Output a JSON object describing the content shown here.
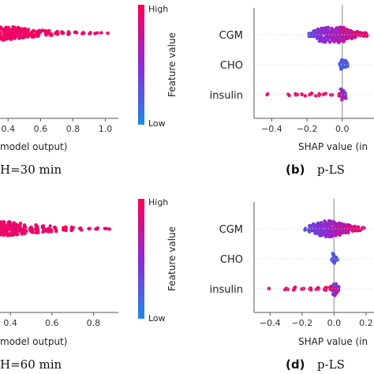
{
  "colors": {
    "low": "#1e88e5",
    "high": "#ff0052",
    "axis": "#555555",
    "zero_line": "#999999"
  },
  "colorbar": {
    "high_label": "High",
    "low_label": "Low",
    "title": "Feature value"
  },
  "chart_data": [
    {
      "type": "scatter",
      "subtype": "shap-beeswarm",
      "panel": "a",
      "caption": "H=30 min",
      "xlabel": "model output)",
      "xticks": [
        "0.4",
        "0.6",
        "0.8",
        "1.0"
      ],
      "xlim": [
        0.35,
        1.08
      ],
      "features": [
        {
          "name": "",
          "points": [
            [
              0.35,
              0.9
            ],
            [
              0.38,
              0.9
            ],
            [
              0.4,
              0.9
            ],
            [
              0.42,
              0.8
            ],
            [
              0.44,
              0.8
            ],
            [
              0.46,
              0.7
            ],
            [
              0.48,
              0.6
            ],
            [
              0.5,
              0.6
            ],
            [
              0.52,
              0.5
            ],
            [
              0.55,
              0.5
            ],
            [
              0.58,
              0.4
            ],
            [
              0.6,
              0.4
            ],
            [
              0.63,
              0.35
            ],
            [
              0.66,
              0.3
            ],
            [
              0.7,
              0.25
            ],
            [
              0.74,
              0.2
            ],
            [
              0.78,
              0.2
            ],
            [
              0.82,
              0.15
            ],
            [
              0.86,
              0.12
            ],
            [
              0.9,
              0.1
            ],
            [
              0.94,
              0.08
            ],
            [
              0.98,
              0.05
            ],
            [
              1.02,
              0.03
            ]
          ]
        }
      ]
    },
    {
      "type": "scatter",
      "subtype": "shap-beeswarm",
      "panel": "b",
      "caption": "p-LS",
      "xlabel": "SHAP value (in",
      "xticks": [
        "−0.4",
        "−0.2",
        "0.0"
      ],
      "xtick_values": [
        -0.4,
        -0.2,
        0.0
      ],
      "xlim": [
        -0.5,
        0.18
      ],
      "features": [
        {
          "name": "CGM",
          "points": [
            [
              -0.18,
              0.3
            ],
            [
              -0.16,
              0.5
            ],
            [
              -0.14,
              0.7
            ],
            [
              -0.12,
              0.9
            ],
            [
              -0.1,
              1.0
            ],
            [
              -0.08,
              1.0
            ],
            [
              -0.06,
              1.0
            ],
            [
              -0.04,
              1.0
            ],
            [
              -0.02,
              1.0
            ],
            [
              0.0,
              0.9
            ],
            [
              0.02,
              0.8
            ],
            [
              0.04,
              0.6
            ],
            [
              0.06,
              0.5
            ],
            [
              0.08,
              0.4
            ],
            [
              0.1,
              0.3
            ],
            [
              0.12,
              0.25
            ],
            [
              0.14,
              0.2
            ]
          ]
        },
        {
          "name": "CHO",
          "points": [
            [
              -0.01,
              0.3
            ],
            [
              0.0,
              0.6
            ],
            [
              0.01,
              0.5
            ],
            [
              0.02,
              0.3
            ]
          ]
        },
        {
          "name": "insulin",
          "points": [
            [
              -0.43,
              0.1
            ],
            [
              -0.3,
              0.1
            ],
            [
              -0.26,
              0.15
            ],
            [
              -0.22,
              0.15
            ],
            [
              -0.18,
              0.2
            ],
            [
              -0.14,
              0.2
            ],
            [
              -0.1,
              0.15
            ],
            [
              -0.06,
              0.1
            ],
            [
              -0.02,
              0.15
            ],
            [
              0.0,
              0.7
            ],
            [
              0.01,
              0.6
            ]
          ]
        }
      ]
    },
    {
      "type": "scatter",
      "subtype": "shap-beeswarm",
      "panel": "c",
      "caption": "H=60 min",
      "xlabel": "model output)",
      "xticks": [
        "0.4",
        "0.6",
        "0.8"
      ],
      "xlim": [
        0.35,
        0.92
      ],
      "features": [
        {
          "name": "",
          "points": [
            [
              0.35,
              0.9
            ],
            [
              0.37,
              0.9
            ],
            [
              0.39,
              0.9
            ],
            [
              0.41,
              0.8
            ],
            [
              0.43,
              0.8
            ],
            [
              0.45,
              0.7
            ],
            [
              0.47,
              0.6
            ],
            [
              0.5,
              0.55
            ],
            [
              0.53,
              0.5
            ],
            [
              0.56,
              0.45
            ],
            [
              0.59,
              0.4
            ],
            [
              0.62,
              0.35
            ],
            [
              0.66,
              0.3
            ],
            [
              0.7,
              0.25
            ],
            [
              0.74,
              0.2
            ],
            [
              0.78,
              0.15
            ],
            [
              0.82,
              0.12
            ],
            [
              0.86,
              0.08
            ],
            [
              0.88,
              0.05
            ]
          ]
        }
      ]
    },
    {
      "type": "scatter",
      "subtype": "shap-beeswarm",
      "panel": "d",
      "caption": "p-LS",
      "xlabel": "SHAP value (in",
      "xticks": [
        "−0.4",
        "−0.2",
        "0.0",
        "0.2"
      ],
      "xtick_values": [
        -0.4,
        -0.2,
        0.0,
        0.2
      ],
      "xlim": [
        -0.5,
        0.25
      ],
      "features": [
        {
          "name": "CGM",
          "points": [
            [
              -0.18,
              0.2
            ],
            [
              -0.15,
              0.4
            ],
            [
              -0.12,
              0.6
            ],
            [
              -0.1,
              0.8
            ],
            [
              -0.08,
              0.9
            ],
            [
              -0.06,
              1.0
            ],
            [
              -0.04,
              1.0
            ],
            [
              -0.02,
              1.0
            ],
            [
              0.0,
              1.0
            ],
            [
              0.02,
              0.9
            ],
            [
              0.04,
              0.8
            ],
            [
              0.06,
              0.7
            ],
            [
              0.08,
              0.6
            ],
            [
              0.1,
              0.5
            ],
            [
              0.12,
              0.4
            ],
            [
              0.14,
              0.3
            ],
            [
              0.16,
              0.25
            ],
            [
              0.18,
              0.2
            ]
          ]
        },
        {
          "name": "CHO",
          "points": [
            [
              -0.01,
              0.3
            ],
            [
              0.0,
              0.7
            ],
            [
              0.01,
              0.5
            ],
            [
              0.02,
              0.2
            ]
          ]
        },
        {
          "name": "insulin",
          "points": [
            [
              -0.4,
              0.1
            ],
            [
              -0.3,
              0.15
            ],
            [
              -0.25,
              0.2
            ],
            [
              -0.2,
              0.2
            ],
            [
              -0.15,
              0.2
            ],
            [
              -0.1,
              0.2
            ],
            [
              -0.05,
              0.25
            ],
            [
              -0.02,
              0.3
            ],
            [
              0.0,
              0.9
            ],
            [
              0.01,
              0.7
            ],
            [
              0.02,
              0.4
            ]
          ]
        }
      ]
    }
  ],
  "panel_labels": {
    "b": "(b)",
    "d": "(d)"
  }
}
